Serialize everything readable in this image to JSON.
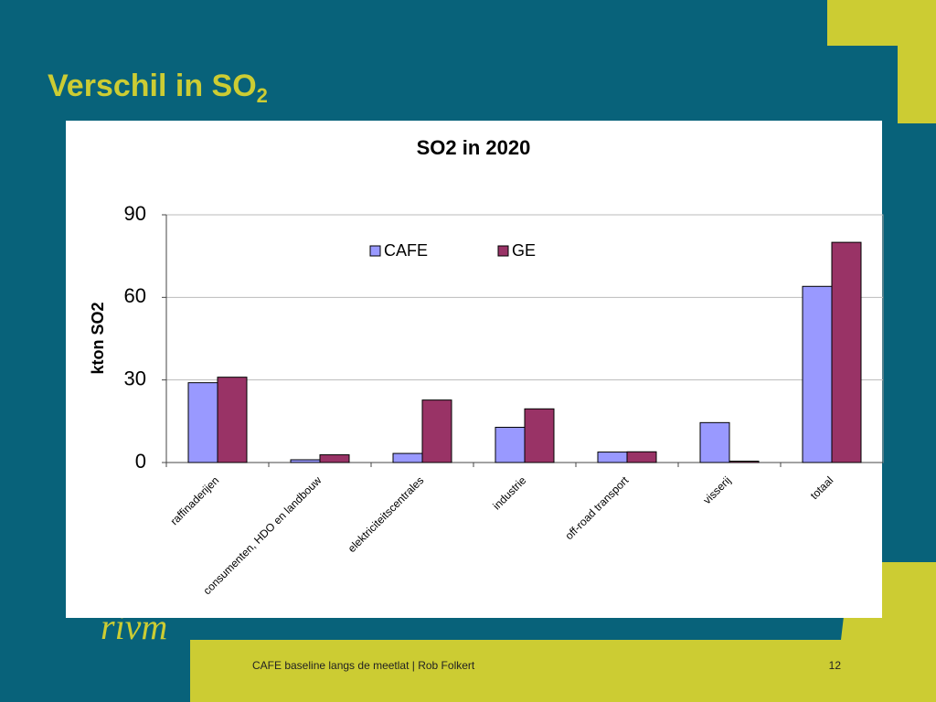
{
  "slide": {
    "title": "Verschil in SO",
    "title_subscript": "2",
    "footer": "CAFE baseline langs de meetlat | Rob Folkert",
    "page_number": "12",
    "logo": "rivm"
  },
  "chart_data": {
    "type": "bar",
    "title": "SO2 in 2020",
    "y_label": "kton SO2",
    "categories": [
      "raffinaderijen",
      "consumenten, HDO en landbouw",
      "elektriciteitscentrales",
      "industrie",
      "off-road transport",
      "visserij",
      "totaal"
    ],
    "series": [
      {
        "name": "CAFE",
        "color": "#9999ff",
        "values": [
          29,
          1,
          3.3,
          12.8,
          3.8,
          14.5,
          64
        ]
      },
      {
        "name": "GE",
        "color": "#993366",
        "values": [
          31,
          2.8,
          22.7,
          19.5,
          3.9,
          0.5,
          80
        ]
      }
    ],
    "ylim": [
      0,
      90
    ],
    "yticks": [
      0,
      30,
      60,
      90
    ],
    "grid": true,
    "legend": "top"
  }
}
